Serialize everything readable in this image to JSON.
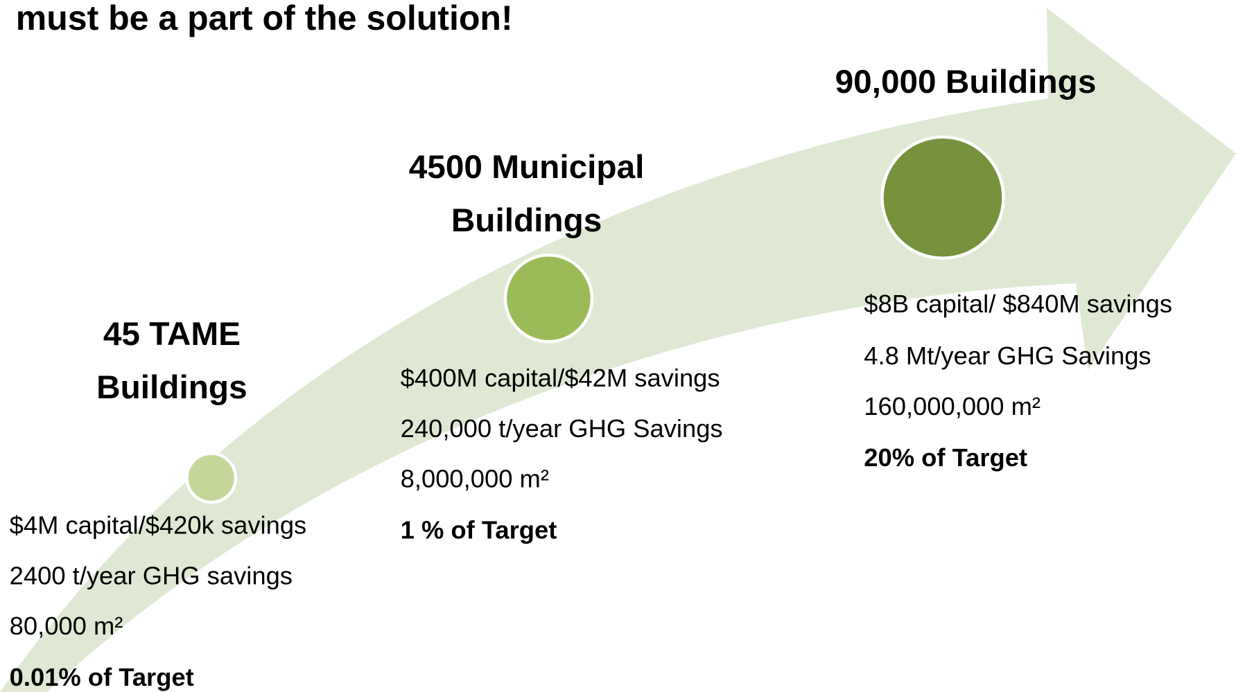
{
  "header": {
    "title": "must be a part of the solution!"
  },
  "stages": [
    {
      "title": [
        "45 TAME",
        "Buildings"
      ],
      "lines": [
        "$4M capital/$420k savings",
        "2400 t/year GHG savings",
        "80,000 m²"
      ],
      "target": "0.01% of Target"
    },
    {
      "title": [
        "4500 Municipal",
        "Buildings"
      ],
      "lines": [
        "$400M capital/$42M savings",
        "240,000 t/year GHG Savings",
        "8,000,000 m²"
      ],
      "target": "1 % of Target"
    },
    {
      "title": [
        "90,000 Buildings"
      ],
      "lines": [
        "$8B capital/ $840M savings",
        "4.8 Mt/year GHG Savings",
        "160,000,000 m²"
      ],
      "target": "20% of Target"
    }
  ]
}
